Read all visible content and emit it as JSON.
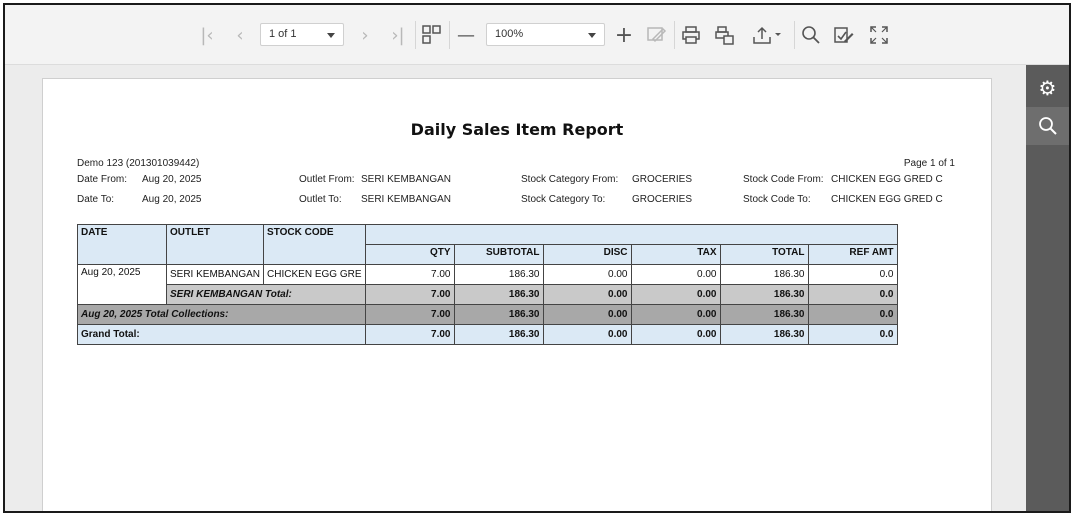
{
  "toolbar": {
    "page_select": "1 of 1",
    "zoom_select": "100%",
    "icons": [
      "first-page-icon",
      "prev-page-icon",
      "next-page-icon",
      "last-page-icon",
      "multipage-icon",
      "zoom-out-icon",
      "zoom-in-icon",
      "highlight-editing-icon",
      "print-icon",
      "print-page-icon",
      "export-icon",
      "search-icon",
      "editing-fields-icon",
      "fullscreen-icon"
    ]
  },
  "sidebar": {
    "icons": [
      "gear-icon",
      "search-icon"
    ]
  },
  "report": {
    "title": "Daily Sales Item Report",
    "company": "Demo 123 (201301039442)",
    "page_info": "Page 1 of 1",
    "date_from_label": "Date From:",
    "date_from": "Aug 20, 2025",
    "date_to_label": "Date To:",
    "date_to": "Aug 20, 2025",
    "outlet_from_label": "Outlet From:",
    "outlet_from": "SERI KEMBANGAN",
    "outlet_to_label": "Outlet To:",
    "outlet_to": "SERI KEMBANGAN",
    "stock_cat_from_label": "Stock Category From:",
    "stock_cat_from": "GROCERIES",
    "stock_cat_to_label": "Stock Category To:",
    "stock_cat_to": "GROCERIES",
    "stock_code_from_label": "Stock Code From:",
    "stock_code_from": "CHICKEN EGG GRED C",
    "stock_code_to_label": "Stock Code To:",
    "stock_code_to": "CHICKEN EGG GRED C",
    "table": {
      "headers": {
        "date": "DATE",
        "outlet": "OUTLET",
        "stock_code": "STOCK CODE",
        "qty": "QTY",
        "subtotal": "SUBTOTAL",
        "disc": "DISC",
        "tax": "TAX",
        "total": "TOTAL",
        "ref_amt": "REF AMT"
      },
      "row": {
        "date": "Aug 20, 2025",
        "outlet": "SERI KEMBANGAN",
        "stock_code": "CHICKEN EGG GRE",
        "qty": "7.00",
        "subtotal": "186.30",
        "disc": "0.00",
        "tax": "0.00",
        "total": "186.30",
        "ref_amt": "0.0"
      },
      "outlet_total": {
        "label": "SERI KEMBANGAN Total:",
        "qty": "7.00",
        "subtotal": "186.30",
        "disc": "0.00",
        "tax": "0.00",
        "total": "186.30",
        "ref_amt": "0.0"
      },
      "collections": {
        "label": "Aug 20, 2025 Total Collections:",
        "qty": "7.00",
        "subtotal": "186.30",
        "disc": "0.00",
        "tax": "0.00",
        "total": "186.30",
        "ref_amt": "0.0"
      },
      "grand_total": {
        "label": "Grand Total:",
        "qty": "7.00",
        "subtotal": "186.30",
        "disc": "0.00",
        "tax": "0.00",
        "total": "186.30",
        "ref_amt": "0.0"
      }
    }
  }
}
